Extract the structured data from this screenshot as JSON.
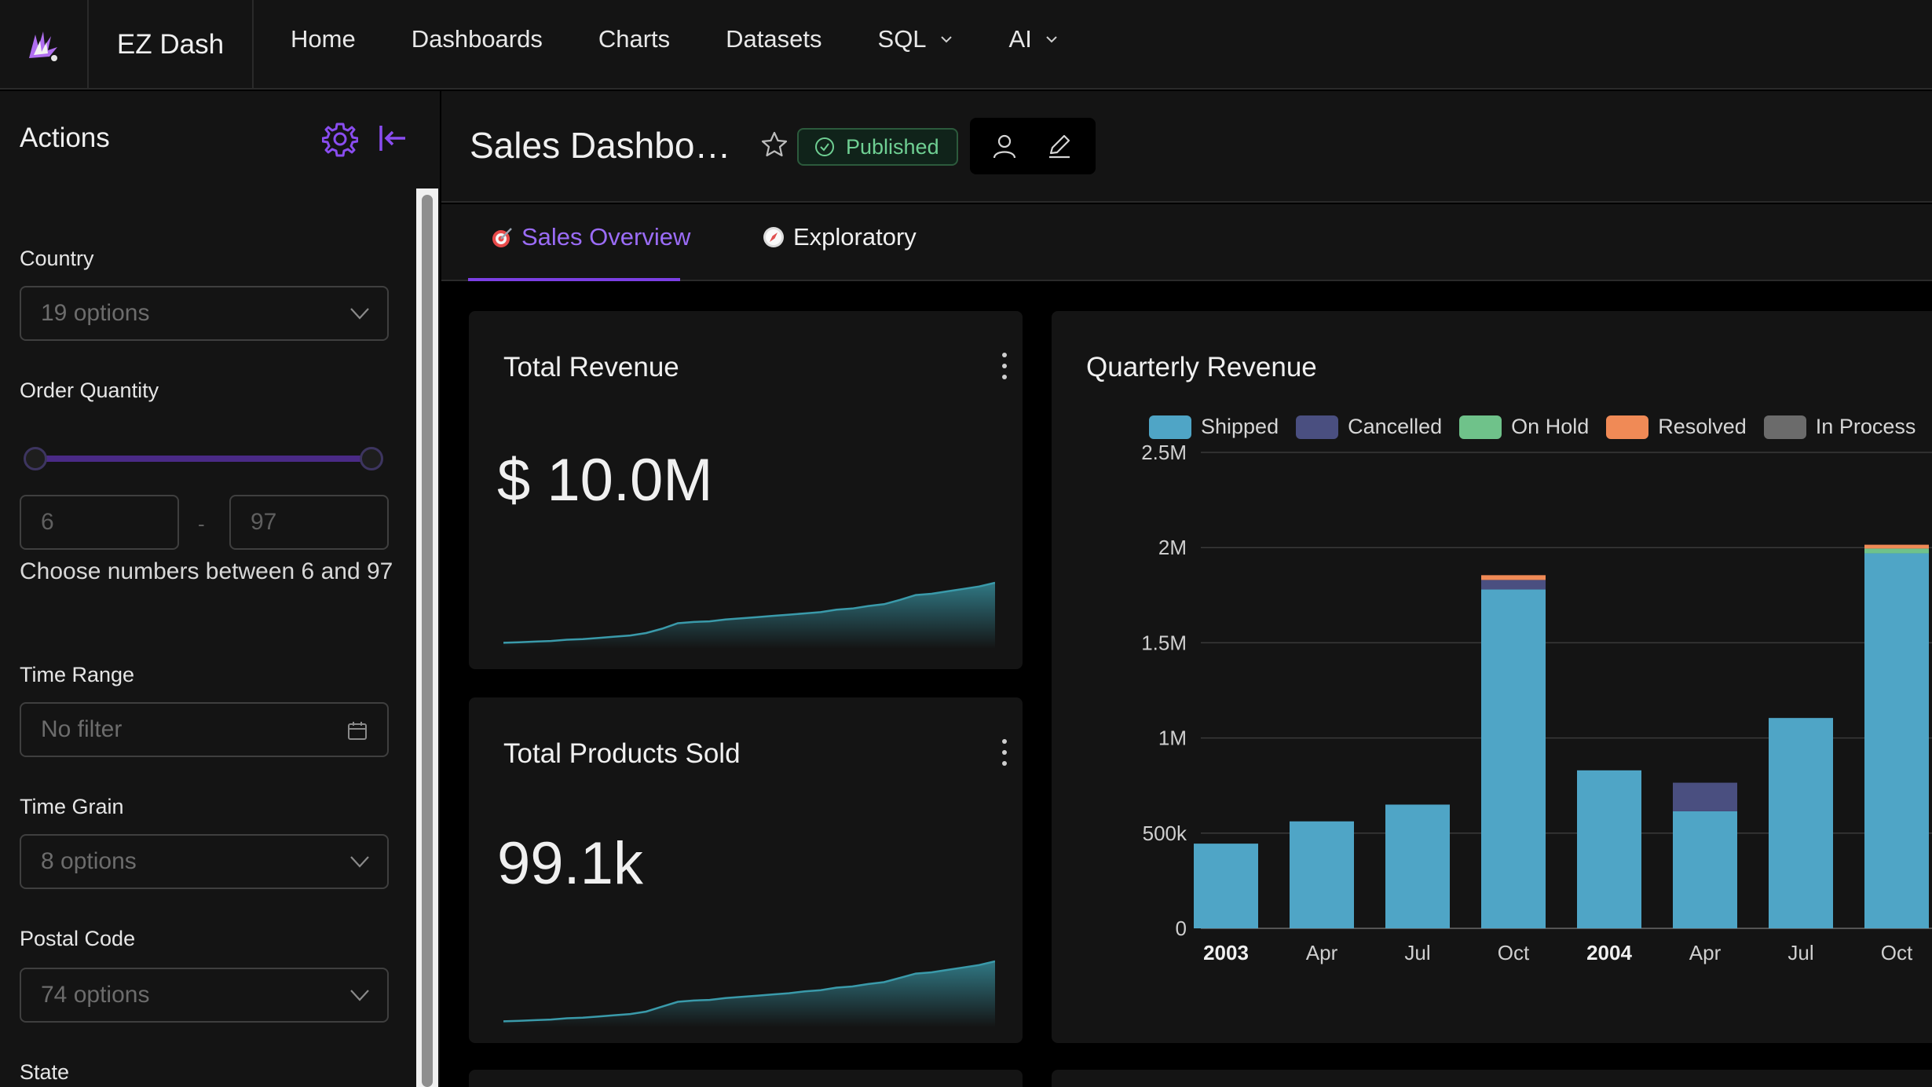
{
  "app": {
    "brand": "EZ Dash"
  },
  "nav": {
    "items": [
      {
        "label": "Home",
        "dropdown": false
      },
      {
        "label": "Dashboards",
        "dropdown": false
      },
      {
        "label": "Charts",
        "dropdown": false
      },
      {
        "label": "Datasets",
        "dropdown": false
      },
      {
        "label": "SQL",
        "dropdown": true
      },
      {
        "label": "AI",
        "dropdown": true
      }
    ]
  },
  "sidebar": {
    "title": "Actions",
    "filters": {
      "country": {
        "label": "Country",
        "placeholder": "19 options"
      },
      "order_quantity": {
        "label": "Order Quantity",
        "min": "6",
        "max": "97",
        "hint": "Choose numbers between 6 and 97"
      },
      "time_range": {
        "label": "Time Range",
        "placeholder": "No filter"
      },
      "time_grain": {
        "label": "Time Grain",
        "placeholder": "8 options"
      },
      "postal_code": {
        "label": "Postal Code",
        "placeholder": "74 options"
      },
      "state": {
        "label": "State"
      }
    }
  },
  "dashboard": {
    "title": "Sales Dashbo…",
    "status": "Published",
    "tabs": [
      {
        "label": "Sales Overview",
        "icon": "target-icon",
        "active": true
      },
      {
        "label": "Exploratory",
        "icon": "compass-icon",
        "active": false
      }
    ]
  },
  "cards": {
    "total_revenue": {
      "title": "Total Revenue",
      "value": "$ 10.0M"
    },
    "total_products": {
      "title": "Total Products Sold",
      "value": "99.1k"
    }
  },
  "colors": {
    "accent": "#7b3fe4",
    "shipped": "#4fa5c6",
    "cancelled": "#4a4f80",
    "on_hold": "#6fc28a",
    "resolved": "#f08a56",
    "in_process": "#6b6b6b",
    "spark": "#3a9aaa"
  },
  "chart_data": {
    "type": "bar",
    "stacked": true,
    "title": "Quarterly Revenue",
    "categories": [
      "2003",
      "Apr",
      "Jul",
      "Oct",
      "2004",
      "Apr",
      "Jul",
      "Oct"
    ],
    "bold_categories": [
      "2003",
      "2004"
    ],
    "ylim": [
      0,
      2500000
    ],
    "yticks": [
      {
        "value": 0,
        "label": "0"
      },
      {
        "value": 500000,
        "label": "500k"
      },
      {
        "value": 1000000,
        "label": "1M"
      },
      {
        "value": 1500000,
        "label": "1.5M"
      },
      {
        "value": 2000000,
        "label": "2M"
      },
      {
        "value": 2500000,
        "label": "2.5M"
      }
    ],
    "legend_position": "top",
    "grid": true,
    "series": [
      {
        "name": "Shipped",
        "color": "#4fa5c6",
        "values": [
          445000,
          562000,
          650000,
          1780000,
          830000,
          615000,
          1105000,
          1970000
        ]
      },
      {
        "name": "Cancelled",
        "color": "#4a4f80",
        "values": [
          0,
          0,
          0,
          50000,
          0,
          150000,
          0,
          0
        ]
      },
      {
        "name": "On Hold",
        "color": "#6fc28a",
        "values": [
          0,
          0,
          0,
          0,
          0,
          0,
          0,
          25000
        ]
      },
      {
        "name": "Resolved",
        "color": "#f08a56",
        "values": [
          0,
          0,
          0,
          25000,
          0,
          0,
          0,
          20000
        ]
      },
      {
        "name": "In Process",
        "color": "#6b6b6b",
        "values": [
          0,
          0,
          0,
          0,
          0,
          0,
          0,
          0
        ]
      }
    ]
  },
  "sparklines": {
    "revenue": [
      2,
      3,
      4,
      5,
      7,
      8,
      10,
      12,
      14,
      18,
      25,
      34,
      36,
      37,
      40,
      42,
      44,
      46,
      48,
      50,
      52,
      56,
      58,
      62,
      65,
      72,
      80,
      82,
      86,
      90,
      94,
      100
    ],
    "products": [
      2,
      3,
      4,
      5,
      7,
      8,
      10,
      12,
      14,
      18,
      26,
      34,
      36,
      37,
      40,
      42,
      44,
      46,
      48,
      51,
      53,
      57,
      59,
      63,
      66,
      73,
      80,
      82,
      86,
      90,
      94,
      100
    ]
  }
}
